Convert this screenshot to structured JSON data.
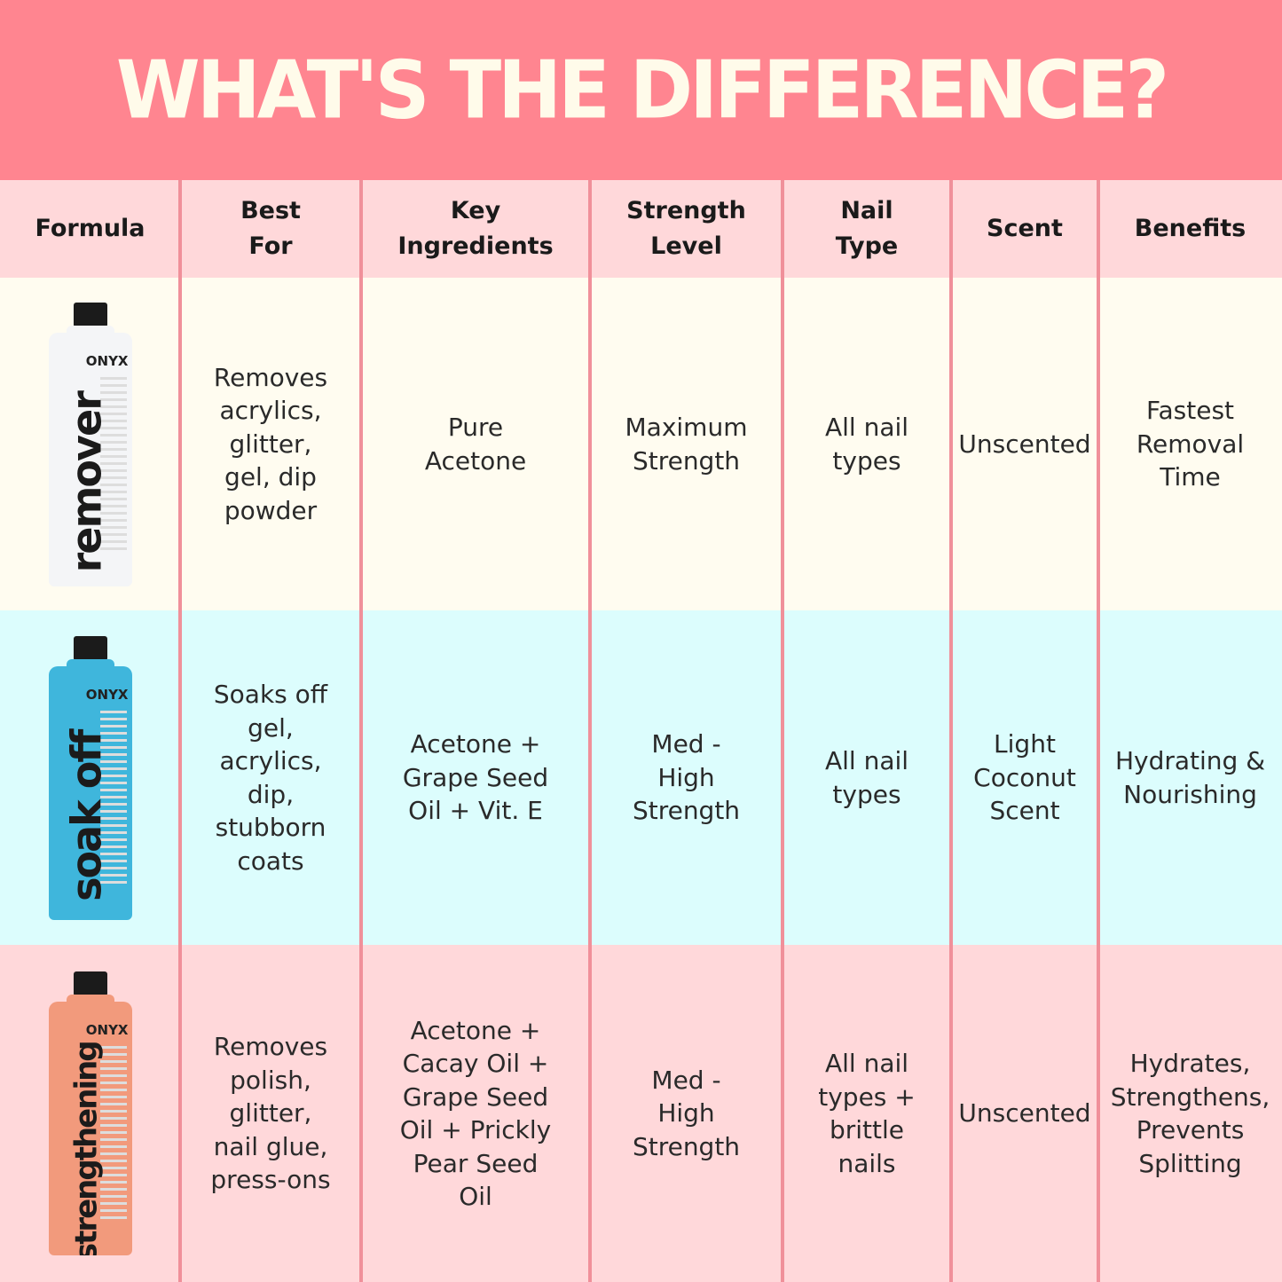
{
  "title": "WHAT'S THE DIFFERENCE?",
  "colors": {
    "banner": "#ff8590",
    "header_bg": "#ffd8da",
    "row1_bg": "#fffcf0",
    "row2_bg": "#dcfdfd",
    "row3_bg": "#ffd8da",
    "divider": "#f0909a",
    "title_text": "#fffbea"
  },
  "headers": [
    "Formula",
    "Best For",
    "Key Ingredients",
    "Strength Level",
    "Nail Type",
    "Scent",
    "Benefits"
  ],
  "rows": [
    {
      "product": {
        "brand": "ONYX",
        "name": "remover",
        "bottle_color": "#f4f5f7"
      },
      "best_for": "Removes acrylics, glitter, gel, dip powder",
      "ingredients": "Pure Acetone",
      "strength": "Maximum Strength",
      "nail_type": "All nail types",
      "scent": "Unscented",
      "benefits": "Fastest Removal Time"
    },
    {
      "product": {
        "brand": "ONYX",
        "name": "soak off",
        "bottle_color": "#3fb6dc"
      },
      "best_for": "Soaks off gel, acrylics, dip, stubborn coats",
      "ingredients": "Acetone + Grape Seed Oil + Vit. E",
      "strength": "Med - High Strength",
      "nail_type": "All nail types",
      "scent": "Light Coconut Scent",
      "benefits": "Hydrating & Nourishing"
    },
    {
      "product": {
        "brand": "ONYX",
        "name": "strengthening",
        "bottle_color": "#f29a7c"
      },
      "best_for": "Removes polish, glitter, nail glue, press-ons",
      "ingredients": "Acetone + Cacay Oil + Grape Seed Oil + Prickly Pear Seed Oil",
      "strength": "Med - High Strength",
      "nail_type": "All nail types + brittle nails",
      "scent": "Unscented",
      "benefits": "Hydrates, Strengthens, Prevents Splitting"
    }
  ]
}
